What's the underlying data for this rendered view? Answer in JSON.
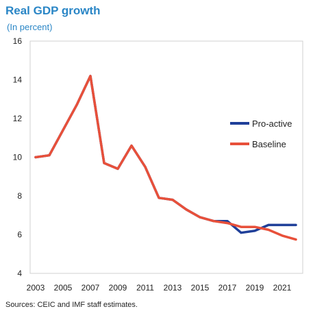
{
  "title": "Real GDP growth",
  "subtitle": "(In percent)",
  "source": "Sources: CEIC and IMF staff estimates.",
  "colors": {
    "pro_active": "#1f3f99",
    "baseline": "#e8503a",
    "title": "#2a86c6"
  },
  "chart_data": {
    "type": "line",
    "title": "Real GDP growth",
    "subtitle": "(In percent)",
    "xlabel": "",
    "ylabel": "",
    "xlim": [
      2003,
      2022
    ],
    "ylim": [
      4,
      16
    ],
    "yticks": [
      4,
      6,
      8,
      10,
      12,
      14,
      16
    ],
    "xticks": [
      2003,
      2005,
      2007,
      2009,
      2011,
      2013,
      2015,
      2017,
      2019,
      2021
    ],
    "grid": false,
    "legend_position": "right",
    "x": [
      2003,
      2004,
      2005,
      2006,
      2007,
      2008,
      2009,
      2010,
      2011,
      2012,
      2013,
      2014,
      2015,
      2016,
      2017,
      2018,
      2019,
      2020,
      2021,
      2022
    ],
    "series": [
      {
        "name": "Pro-active",
        "color": "#1f3f99",
        "values": [
          10.0,
          10.1,
          11.4,
          12.7,
          14.2,
          9.7,
          9.4,
          10.6,
          9.5,
          7.9,
          7.8,
          7.3,
          6.9,
          6.7,
          6.7,
          6.1,
          6.2,
          6.5,
          6.5,
          6.5
        ]
      },
      {
        "name": "Baseline",
        "color": "#e8503a",
        "values": [
          10.0,
          10.1,
          11.4,
          12.7,
          14.2,
          9.7,
          9.4,
          10.6,
          9.5,
          7.9,
          7.8,
          7.3,
          6.9,
          6.7,
          6.6,
          6.4,
          6.4,
          6.25,
          5.95,
          5.75
        ]
      }
    ]
  }
}
